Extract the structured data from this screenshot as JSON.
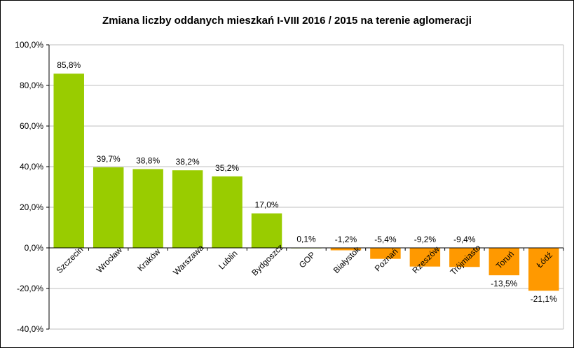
{
  "chart_data": {
    "type": "bar",
    "title": "Zmiana liczby oddanych mieszkań I-VIII 2016 / 2015 na terenie aglomeracji",
    "xlabel": "",
    "ylabel": "",
    "categories": [
      "Szczecin",
      "Wrocław",
      "Kraków",
      "Warszawa",
      "Lublin",
      "Bydgoszcz",
      "GOP",
      "Białystok",
      "Poznań",
      "Rzeszów",
      "Trójmiasto",
      "Toruń",
      "Łódź"
    ],
    "values": [
      85.8,
      39.7,
      38.8,
      38.2,
      35.2,
      17.0,
      0.1,
      -1.2,
      -5.4,
      -9.2,
      -9.4,
      -13.5,
      -21.1
    ],
    "data_labels": [
      "85,8%",
      "39,7%",
      "38,8%",
      "38,2%",
      "35,2%",
      "17,0%",
      "0,1%",
      "-1,2%",
      "-5,4%",
      "-9,2%",
      "-9,4%",
      "-13,5%",
      "-21,1%"
    ],
    "ylim": [
      -40,
      100
    ],
    "yticks": [
      -40,
      -20,
      0,
      20,
      40,
      60,
      80,
      100
    ],
    "ytick_labels": [
      "-40,0%",
      "-20,0%",
      "0,0%",
      "20,0%",
      "40,0%",
      "60,0%",
      "80,0%",
      "100,0%"
    ],
    "grid": true,
    "legend": "none",
    "colors": {
      "positive": "#99cc00",
      "negative": "#ff9900",
      "grid": "#bfbfbf",
      "axis": "#000000"
    }
  }
}
